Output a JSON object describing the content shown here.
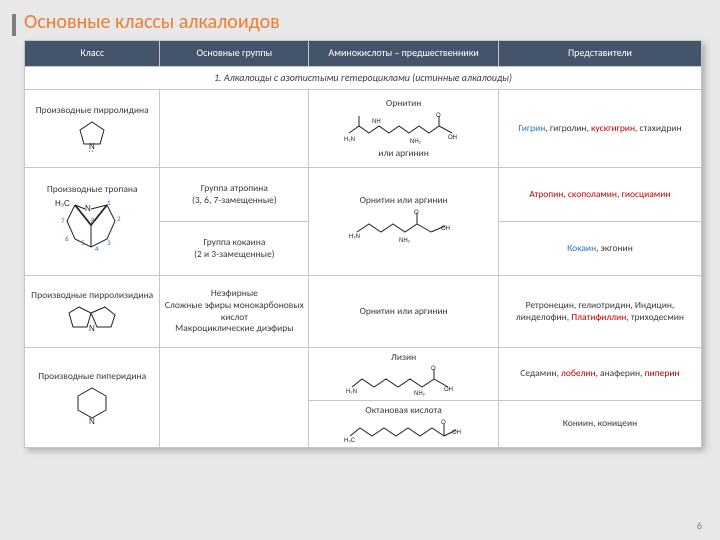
{
  "title": {
    "text": "Основные классы алкалоидов",
    "color": "#ed7d31"
  },
  "page_number": "6",
  "columns": {
    "c1": "Класс",
    "c2": "Основные группы",
    "c3": "Аминокислоты – предшественники",
    "c4": "Представители",
    "widths_pct": [
      20,
      22,
      28,
      30
    ]
  },
  "section1": "1. Алкалоиды с азотистыми гетероциклами (истинные алкалоиды)",
  "rows": {
    "r1": {
      "klass": "Производные пирролидина",
      "prec_top": "Орнитин",
      "prec_bot": "или аргинин",
      "reps": [
        {
          "t": "Гигрин",
          "c": "#2e75b6"
        },
        {
          "t": ", гигролин, ",
          "c": "#3b3b3b"
        },
        {
          "t": "кускгигрин",
          "c": "#c00000"
        },
        {
          "t": ", стахидрин",
          "c": "#3b3b3b"
        }
      ]
    },
    "r2": {
      "klass": "Производные тропана",
      "g1": "Группа атропина\n(3, 6, 7-замещенные)",
      "g2": "Группа кокаина\n(2 и 3-замещенные)",
      "prec": "Орнитин или аргинин",
      "reps1": [
        {
          "t": "Атропин, скополамин, гиосциамин",
          "c": "#c00000"
        }
      ],
      "reps2": [
        {
          "t": "Кокаин",
          "c": "#2e75b6"
        },
        {
          "t": ", экгонин",
          "c": "#3b3b3b"
        }
      ],
      "struct_label": "H₃C",
      "struct_idx": [
        "1",
        "2",
        "3",
        "4",
        "5",
        "6",
        "7",
        "8"
      ]
    },
    "r3": {
      "klass": "Производные пирролизидина",
      "groups": "Неэфирные\nСложные эфиры монокарбоновых кислот\nМакроциклические диэфиры",
      "prec": "Орнитин или аргинин",
      "reps": [
        {
          "t": "Ретронецин, гелиотридин, Индицин, линделофин, ",
          "c": "#3b3b3b"
        },
        {
          "t": "Платифиллин",
          "c": "#c00000"
        },
        {
          "t": ", триходесмин",
          "c": "#3b3b3b"
        }
      ]
    },
    "r4": {
      "klass": "Производные пиперидина",
      "prec1": "Лизин",
      "prec2": "Октановая кислота",
      "reps1": [
        {
          "t": "Седамин, ",
          "c": "#3b3b3b"
        },
        {
          "t": "лобелин",
          "c": "#c00000"
        },
        {
          "t": ", анаферин, ",
          "c": "#3b3b3b"
        },
        {
          "t": "пиперин",
          "c": "#c00000"
        }
      ],
      "reps2": [
        {
          "t": "Кониин, коницеин",
          "c": "#3b3b3b"
        }
      ]
    }
  },
  "style": {
    "header_bg": "#44546a",
    "border_color": "#c4c6c8",
    "title_accent": "#7f7f7f",
    "shadow": "3px 3px 6px rgba(0,0,0,0.25)"
  }
}
